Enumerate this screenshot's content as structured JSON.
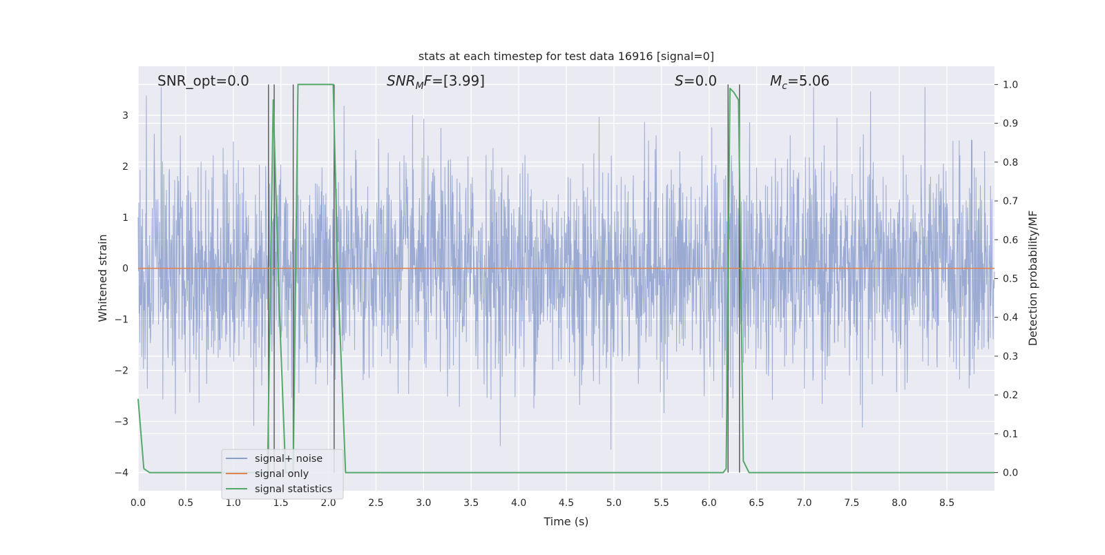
{
  "chart_data": {
    "type": "line",
    "title": "stats at each timestep for test data 16916 [signal=0]",
    "xlabel": "Time (s)",
    "ylabel": "Whitened strain",
    "y2label": "Detection probability/MF",
    "xlim": [
      0.0,
      9.0
    ],
    "ylim": [
      -4.36,
      3.96
    ],
    "y2lim": [
      -0.047,
      1.047
    ],
    "x_ticks": [
      0.0,
      0.5,
      1.0,
      1.5,
      2.0,
      2.5,
      3.0,
      3.5,
      4.0,
      4.5,
      5.0,
      5.5,
      6.0,
      6.5,
      7.0,
      7.5,
      8.0,
      8.5
    ],
    "x_tick_labels": [
      "0.0",
      "0.5",
      "1.0",
      "1.5",
      "2.0",
      "2.5",
      "3.0",
      "3.5",
      "4.0",
      "4.5",
      "5.0",
      "5.5",
      "6.0",
      "6.5",
      "7.0",
      "7.5",
      "8.0",
      "8.5"
    ],
    "y_ticks": [
      -4,
      -3,
      -2,
      -1,
      0,
      1,
      2,
      3
    ],
    "y_tick_labels": [
      "−4",
      "−3",
      "−2",
      "−1",
      "0",
      "1",
      "2",
      "3"
    ],
    "y2_ticks": [
      0.0,
      0.1,
      0.2,
      0.3,
      0.4,
      0.5,
      0.6,
      0.7,
      0.8,
      0.9,
      1.0
    ],
    "y2_tick_labels": [
      "0.0",
      "0.1",
      "0.2",
      "0.3",
      "0.4",
      "0.5",
      "0.6",
      "0.7",
      "0.8",
      "0.9",
      "1.0"
    ],
    "grid": true,
    "legend_position": "lower-left",
    "annotations": {
      "snr_opt": "SNR_opt=0.0",
      "snr_mf_sym": "SNR",
      "snr_mf_sub": "M",
      "snr_mf_rest": "F=[3.99]",
      "s_sym": "S",
      "s_rest": "=0.0",
      "mc_sym": "M",
      "mc_sub": "c",
      "mc_rest": "=5.06"
    },
    "series": [
      {
        "name": "signal+ noise",
        "color": "#8c9fcc",
        "style": "dense random noise trace",
        "x_range": [
          0.0,
          9.0
        ],
        "approx_band": [
          -2.5,
          2.5
        ]
      },
      {
        "name": "signal only",
        "color": "#dd8452",
        "x": [
          0.0,
          9.0
        ],
        "y": [
          0.0,
          0.0
        ]
      },
      {
        "name": "signal statistics",
        "color": "#55a868",
        "axis": "right",
        "x": [
          0.0,
          0.06,
          0.12,
          1.36,
          1.42,
          1.48,
          1.55,
          1.63,
          1.68,
          2.05,
          2.1,
          2.18,
          6.15,
          6.18,
          6.22,
          6.26,
          6.31,
          6.36,
          6.42,
          9.0
        ],
        "y": [
          0.19,
          0.01,
          0.0,
          0.0,
          0.96,
          0.45,
          0.0,
          0.0,
          1.0,
          1.0,
          0.5,
          0.0,
          0.0,
          0.01,
          0.99,
          0.98,
          0.96,
          0.03,
          0.0,
          0.0
        ]
      }
    ],
    "vertical_markers": [
      1.37,
      1.43,
      1.63,
      2.06,
      6.2,
      6.32
    ]
  }
}
